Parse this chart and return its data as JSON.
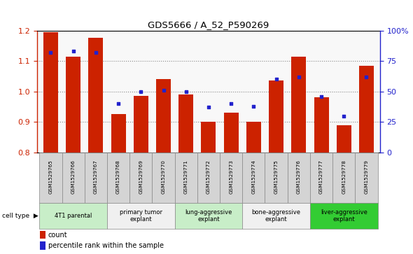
{
  "title": "GDS5666 / A_52_P590269",
  "samples": [
    "GSM1529765",
    "GSM1529766",
    "GSM1529767",
    "GSM1529768",
    "GSM1529769",
    "GSM1529770",
    "GSM1529771",
    "GSM1529772",
    "GSM1529773",
    "GSM1529774",
    "GSM1529775",
    "GSM1529776",
    "GSM1529777",
    "GSM1529778",
    "GSM1529779"
  ],
  "bar_values": [
    1.195,
    1.115,
    1.175,
    0.925,
    0.985,
    1.04,
    0.99,
    0.9,
    0.93,
    0.9,
    1.035,
    1.115,
    0.98,
    0.89,
    1.085
  ],
  "percentile_values": [
    82,
    83,
    82,
    40,
    50,
    51,
    50,
    37,
    40,
    38,
    60,
    62,
    46,
    30,
    62
  ],
  "cell_type_groups": [
    {
      "label": "4T1 parental",
      "start": 0,
      "end": 2,
      "color": "#c8eec8"
    },
    {
      "label": "primary tumor\nexplant",
      "start": 3,
      "end": 5,
      "color": "#f0f0f0"
    },
    {
      "label": "lung-aggressive\nexplant",
      "start": 6,
      "end": 8,
      "color": "#c8eec8"
    },
    {
      "label": "bone-aggressive\nexplant",
      "start": 9,
      "end": 11,
      "color": "#f0f0f0"
    },
    {
      "label": "liver-aggressive\nexplant",
      "start": 12,
      "end": 14,
      "color": "#33cc33"
    }
  ],
  "bar_color": "#cc2200",
  "dot_color": "#2222cc",
  "ylim_left": [
    0.8,
    1.2
  ],
  "ylim_right": [
    0,
    100
  ],
  "yticks_left": [
    0.8,
    0.9,
    1.0,
    1.1,
    1.2
  ],
  "yticks_right": [
    0,
    25,
    50,
    75,
    100
  ],
  "yticklabels_right": [
    "0",
    "25",
    "50",
    "75",
    "100%"
  ],
  "bar_width": 0.65,
  "sample_bg": "#d4d4d4",
  "plot_bg": "#f8f8f8"
}
